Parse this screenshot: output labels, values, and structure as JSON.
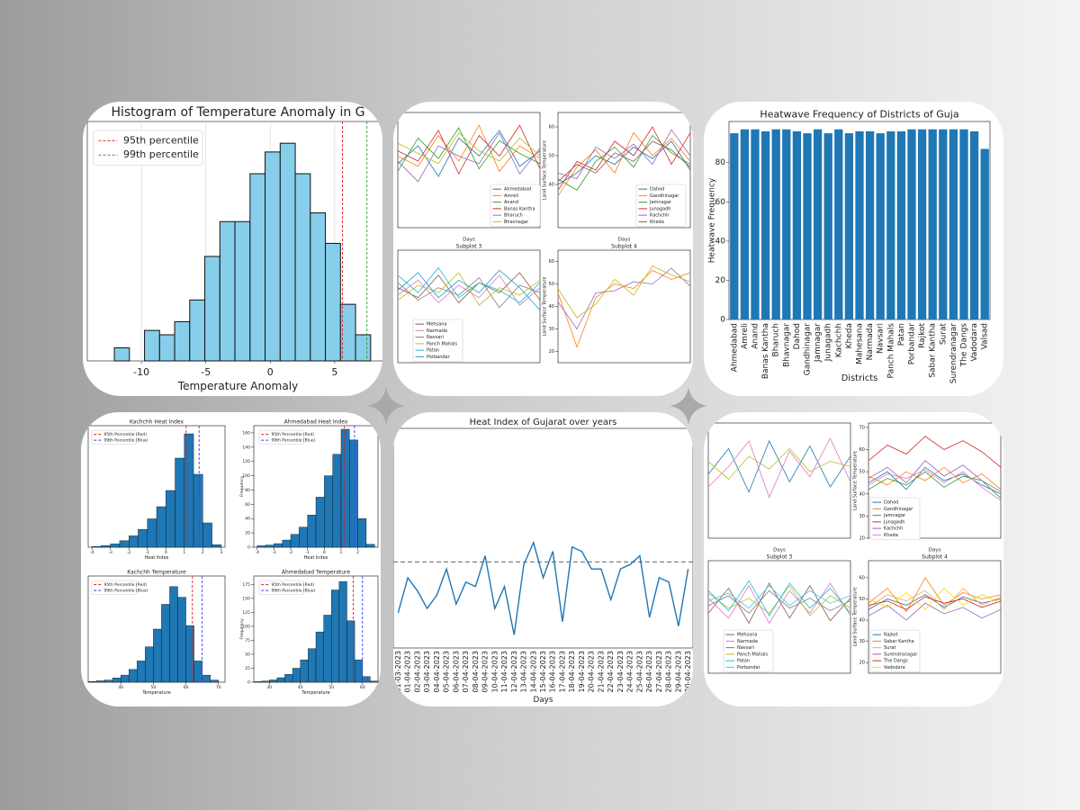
{
  "chart_data": [
    {
      "type": "histogram",
      "title": "Histogram of Temperature Anomaly in G",
      "xlabel": "Temperature Anomaly",
      "color": "#87ceeb",
      "bins": [
        -12.1,
        -10.93,
        -9.76,
        -8.59,
        -7.42,
        -6.25,
        -5.08,
        -3.91,
        -2.74,
        -1.57,
        -0.4,
        0.77,
        1.94,
        3.11,
        4.28,
        5.45,
        6.62,
        7.79
      ],
      "counts": [
        3,
        0,
        7,
        6,
        9,
        14,
        24,
        32,
        32,
        43,
        48,
        50,
        43,
        34,
        27,
        13,
        6
      ],
      "xlim": [
        -14.2,
        9.2
      ],
      "ylim": [
        0,
        55
      ],
      "xticks": [
        -10,
        -5,
        0,
        5
      ],
      "grid": true,
      "lines": [
        {
          "value": 5.6,
          "color": "#e41a1c",
          "label": "95th percentile"
        },
        {
          "value": 7.5,
          "color": "#2ca02c",
          "label": "99th percentile"
        }
      ]
    },
    {
      "type": "line",
      "xlabel": "Days",
      "ylim": [
        20,
        65
      ],
      "series": [
        {
          "name": "Ahmedabad",
          "color": "#1f77b4",
          "values": [
            45,
            52,
            40,
            55,
            48,
            58,
            44,
            50
          ]
        },
        {
          "name": "Amreli",
          "color": "#ff7f0e",
          "values": [
            48,
            44,
            56,
            46,
            60,
            42,
            52,
            47
          ]
        },
        {
          "name": "Anand",
          "color": "#2ca02c",
          "values": [
            42,
            55,
            47,
            59,
            43,
            54,
            49,
            45
          ]
        },
        {
          "name": "Banas Kantha",
          "color": "#d62728",
          "values": [
            50,
            46,
            58,
            41,
            56,
            48,
            60,
            43
          ]
        },
        {
          "name": "Bharuch",
          "color": "#9467bd",
          "values": [
            46,
            38,
            52,
            48,
            45,
            57,
            41,
            51
          ]
        },
        {
          "name": "Bhavnagar",
          "color": "#bcbd22",
          "values": [
            53,
            49,
            45,
            57,
            50,
            46,
            55,
            48
          ]
        }
      ]
    },
    {
      "type": "line",
      "xlabel": "Days",
      "ylabel": "Land Surface Temperature",
      "ylim": [
        25,
        65
      ],
      "yticks": [
        40,
        50,
        60
      ],
      "series": [
        {
          "name": "Dahod",
          "color": "#1f77b4",
          "values": [
            40,
            44,
            50,
            47,
            53,
            49,
            55,
            45
          ]
        },
        {
          "name": "Gandhinagar",
          "color": "#ff7f0e",
          "values": [
            36,
            46,
            52,
            44,
            58,
            50,
            56,
            48
          ]
        },
        {
          "name": "Jamnagar",
          "color": "#2ca02c",
          "values": [
            42,
            38,
            48,
            53,
            46,
            57,
            51,
            47
          ]
        },
        {
          "name": "Junagadh",
          "color": "#d62728",
          "values": [
            38,
            48,
            45,
            55,
            50,
            60,
            47,
            58
          ]
        },
        {
          "name": "Kachchh",
          "color": "#9467bd",
          "values": [
            44,
            42,
            53,
            49,
            54,
            47,
            59,
            50
          ]
        },
        {
          "name": "Kheda",
          "color": "#8c564b",
          "values": [
            41,
            47,
            44,
            51,
            48,
            55,
            52,
            46
          ]
        }
      ]
    },
    {
      "type": "line",
      "title": "Subplot 3",
      "ylim": [
        20,
        65
      ],
      "series": [
        {
          "name": "Mehsana",
          "color": "#8c564b",
          "values": [
            50,
            46,
            55,
            44,
            52,
            48,
            56,
            45
          ]
        },
        {
          "name": "Narmada",
          "color": "#e377c2",
          "values": [
            47,
            53,
            44,
            51,
            46,
            55,
            43,
            50
          ]
        },
        {
          "name": "Navsari",
          "color": "#7f7f7f",
          "values": [
            52,
            45,
            50,
            47,
            54,
            42,
            51,
            48
          ]
        },
        {
          "name": "Panch Mahals",
          "color": "#bcbd22",
          "values": [
            45,
            51,
            48,
            56,
            43,
            50,
            47,
            53
          ]
        },
        {
          "name": "Patan",
          "color": "#17becf",
          "values": [
            55,
            48,
            58,
            46,
            52,
            49,
            44,
            52
          ]
        },
        {
          "name": "Porbandar",
          "color": "#1f9fd6",
          "values": [
            49,
            56,
            46,
            53,
            48,
            57,
            50,
            41
          ]
        }
      ]
    },
    {
      "type": "line",
      "title": "Subplot 4",
      "ylabel": "Land Surface Temperature",
      "ylim": [
        15,
        65
      ],
      "yticks": [
        20,
        30,
        40,
        50,
        60
      ],
      "series": [
        {
          "color": "#ff7f0e",
          "values": [
            46,
            22,
            44,
            50,
            48,
            56,
            52,
            55
          ]
        },
        {
          "color": "#9467bd",
          "values": [
            42,
            30,
            46,
            47,
            51,
            50,
            57,
            49
          ]
        },
        {
          "color": "#bcbd22",
          "values": [
            48,
            35,
            41,
            52,
            45,
            58,
            54,
            51
          ]
        }
      ]
    },
    {
      "type": "bar",
      "title": "Heatwave Frequency of Districts of Guja",
      "xlabel": "Districts",
      "ylabel": "Heatwave Frequency",
      "color": "#1f77b4",
      "categories": [
        "Ahmedabad",
        "Amreli",
        "Anand",
        "Banas Kantha",
        "Bharuch",
        "Bhavnagar",
        "Dahod",
        "Gandhinagar",
        "Jamnagar",
        "Junagadh",
        "Kachchh",
        "Kheda",
        "Mahesana",
        "Narmada",
        "Navsari",
        "Panch Mahals",
        "Patan",
        "Porbandar",
        "Rajkot",
        "Sabar Kantha",
        "Surat",
        "Surendranagar",
        "The Dangs",
        "Vadodara",
        "Valsad"
      ],
      "values": [
        95,
        97,
        97,
        96,
        97,
        97,
        96,
        95,
        97,
        95,
        97,
        95,
        96,
        96,
        95,
        96,
        96,
        97,
        97,
        97,
        97,
        97,
        97,
        96,
        87
      ],
      "ylim": [
        0,
        101
      ],
      "yticks": [
        0,
        20,
        40,
        60,
        80
      ]
    },
    {
      "type": "histogram",
      "title": "Kachchh Heat Index",
      "xlabel": "Heat Index",
      "color": "#1f77b4",
      "bins": [
        -4,
        -3.5,
        -3,
        -2.5,
        -2,
        -1.5,
        -1,
        -0.5,
        0,
        0.5,
        1,
        1.5,
        2,
        2.5,
        3
      ],
      "counts": [
        1,
        2,
        4,
        8,
        14,
        22,
        35,
        50,
        70,
        110,
        140,
        90,
        30,
        3
      ],
      "xlim": [
        -4.2,
        3.2
      ],
      "ylim": [
        0,
        150
      ],
      "xticks": [
        -4,
        -3,
        -2,
        -1,
        0,
        1,
        2,
        3
      ],
      "lines": [
        {
          "value": 1.1,
          "color": "#e41a1c",
          "label": "95th Percentile (Red)"
        },
        {
          "value": 1.8,
          "color": "#3b3bff",
          "label": "99th Percentile (Blue)"
        }
      ]
    },
    {
      "type": "histogram",
      "title": "Ahmedabad Heat Index",
      "xlabel": "Heat Index",
      "ylabel": "Frequency",
      "color": "#1f77b4",
      "bins": [
        -4,
        -3.5,
        -3,
        -2.5,
        -2,
        -1.5,
        -1,
        -0.5,
        0,
        0.5,
        1,
        1.5,
        2,
        2.5,
        3
      ],
      "counts": [
        2,
        3,
        5,
        10,
        18,
        28,
        45,
        70,
        100,
        130,
        165,
        150,
        40,
        4
      ],
      "xlim": [
        -4.2,
        3.2
      ],
      "ylim": [
        0,
        170
      ],
      "xticks": [
        -4,
        -3,
        -2,
        -1,
        0,
        1,
        2
      ],
      "yticks": [
        0,
        20,
        40,
        60,
        80,
        100,
        120,
        140,
        160
      ],
      "lines": [
        {
          "value": 1.2,
          "color": "#e41a1c",
          "label": "95th Percentile (Red)"
        },
        {
          "value": 1.8,
          "color": "#3b3bff",
          "label": "99th Percentile (Blue)"
        }
      ]
    },
    {
      "type": "histogram",
      "title": "Kachchh Temperature",
      "xlabel": "Temperature",
      "color": "#1f77b4",
      "bins": [
        30,
        32.5,
        35,
        37.5,
        40,
        42.5,
        45,
        47.5,
        50,
        52.5,
        55,
        57.5,
        60,
        62.5,
        65,
        67.5,
        70
      ],
      "counts": [
        1,
        2,
        3,
        6,
        10,
        18,
        30,
        50,
        75,
        110,
        135,
        120,
        80,
        30,
        10,
        3
      ],
      "xlim": [
        30,
        72
      ],
      "ylim": [
        0,
        150
      ],
      "xticks": [
        40,
        50,
        60,
        70
      ],
      "lines": [
        {
          "value": 62,
          "color": "#e41a1c",
          "label": "95th Percentile (Red)"
        },
        {
          "value": 65,
          "color": "#3b3bff",
          "label": "99th Percentile (Blue)"
        }
      ]
    },
    {
      "type": "histogram",
      "title": "Ahmedabad Temperature",
      "xlabel": "Temperature",
      "ylabel": "Frequency",
      "color": "#1f77b4",
      "bins": [
        25,
        27.5,
        30,
        32.5,
        35,
        37.5,
        40,
        42.5,
        45,
        47.5,
        50,
        52.5,
        55,
        57.5,
        60,
        62.5,
        65
      ],
      "counts": [
        1,
        2,
        4,
        8,
        14,
        25,
        40,
        60,
        90,
        120,
        165,
        180,
        110,
        40,
        10,
        2
      ],
      "xlim": [
        25,
        65
      ],
      "ylim": [
        0,
        190
      ],
      "xticks": [
        30,
        40,
        50,
        60
      ],
      "yticks": [
        0,
        25,
        50,
        75,
        100,
        125,
        150,
        175
      ],
      "lines": [
        {
          "value": 57,
          "color": "#e41a1c",
          "label": "95th Percentile (Red)"
        },
        {
          "value": 60,
          "color": "#3b3bff",
          "label": "99th Percentile (Blue)"
        }
      ]
    },
    {
      "type": "line",
      "title": "Heat Index of Gujarat over years",
      "xlabel": "Days",
      "ylim": [
        0,
        25
      ],
      "hline": {
        "value": 9.8,
        "color": "#7f7f7f"
      },
      "categories": [
        "31-03-2023",
        "01-04-2023",
        "02-04-2023",
        "03-04-2023",
        "04-04-2023",
        "05-04-2023",
        "06-04-2023",
        "07-04-2023",
        "08-04-2023",
        "09-04-2023",
        "10-04-2023",
        "11-04-2023",
        "12-04-2023",
        "13-04-2023",
        "14-04-2023",
        "15-04-2023",
        "16-04-2023",
        "17-04-2023",
        "18-04-2023",
        "19-04-2023",
        "20-04-2023",
        "21-04-2023",
        "22-04-2023",
        "23-04-2023",
        "24-04-2023",
        "25-04-2023",
        "26-04-2023",
        "27-04-2023",
        "28-04-2023",
        "29-04-2023",
        "30-04-2023"
      ],
      "series": [
        {
          "color": "#1f77b4",
          "values": [
            4,
            8,
            6.5,
            4.5,
            6,
            9,
            5,
            7.5,
            7,
            10.5,
            4.5,
            7,
            1.5,
            9.5,
            12,
            8,
            11,
            3,
            11.5,
            11,
            9,
            9,
            5.5,
            9,
            9.5,
            10.5,
            3.5,
            8,
            7.5,
            2.5,
            9
          ]
        }
      ]
    },
    {
      "type": "line",
      "xlabel": "Days",
      "ylim": [
        20,
        65
      ],
      "series": [
        {
          "color": "#1f77b4",
          "values": [
            45,
            55,
            38,
            58,
            42,
            56,
            40,
            52
          ]
        },
        {
          "color": "#e377c2",
          "values": [
            40,
            48,
            58,
            36,
            54,
            44,
            59,
            42
          ]
        },
        {
          "color": "#bcbd22",
          "values": [
            50,
            43,
            52,
            47,
            55,
            46,
            50,
            48
          ]
        }
      ]
    },
    {
      "type": "line",
      "xlabel": "Days",
      "ylabel": "Land Surface Temperature",
      "ylim": [
        20,
        72
      ],
      "yticks": [
        20,
        30,
        40,
        50,
        60,
        70
      ],
      "series": [
        {
          "name": "Dahod",
          "color": "#1f77b4",
          "values": [
            45,
            50,
            42,
            52,
            46,
            49,
            44,
            40
          ]
        },
        {
          "name": "Gandhinagar",
          "color": "#ff7f0e",
          "values": [
            48,
            44,
            50,
            46,
            52,
            45,
            49,
            42
          ]
        },
        {
          "name": "Jamnagar",
          "color": "#2ca02c",
          "values": [
            42,
            47,
            44,
            50,
            43,
            48,
            46,
            38
          ]
        },
        {
          "name": "Junagadh",
          "color": "#d62728",
          "values": [
            55,
            62,
            58,
            66,
            60,
            64,
            59,
            52
          ]
        },
        {
          "name": "Kachchh",
          "color": "#9467bd",
          "values": [
            47,
            52,
            45,
            55,
            48,
            53,
            46,
            41
          ]
        },
        {
          "name": "Kheda",
          "color": "#e377c2",
          "values": [
            44,
            49,
            47,
            51,
            45,
            50,
            43,
            37
          ]
        }
      ]
    },
    {
      "type": "line",
      "title": "Subplot 3",
      "ylim": [
        20,
        65
      ],
      "series": [
        {
          "name": "Mehsana",
          "color": "#8c564b",
          "values": [
            44,
            54,
            40,
            56,
            42,
            55,
            41,
            50
          ]
        },
        {
          "name": "Narmada",
          "color": "#e377c2",
          "values": [
            50,
            42,
            55,
            40,
            53,
            44,
            56,
            43
          ]
        },
        {
          "name": "Navsari",
          "color": "#7f7f7f",
          "values": [
            47,
            51,
            44,
            53,
            46,
            50,
            45,
            49
          ]
        },
        {
          "name": "Panch Mahals",
          "color": "#bcbd22",
          "values": [
            52,
            46,
            50,
            44,
            55,
            43,
            51,
            46
          ]
        },
        {
          "name": "Patan",
          "color": "#17becf",
          "values": [
            53,
            45,
            57,
            43,
            56,
            46,
            54,
            44
          ]
        },
        {
          "name": "Porbandar",
          "color": "#4fc3e8",
          "values": [
            49,
            52,
            46,
            55,
            47,
            53,
            48,
            51
          ]
        }
      ]
    },
    {
      "type": "line",
      "title": "Subplot 4",
      "ylabel": "Land Surface Temperature",
      "ylim": [
        15,
        68
      ],
      "yticks": [
        20,
        30,
        40,
        50,
        60
      ],
      "series": [
        {
          "name": "Rajkot",
          "color": "#1f77b4",
          "values": [
            45,
            50,
            47,
            52,
            46,
            51,
            48,
            50
          ]
        },
        {
          "name": "Sabar Kantha",
          "color": "#ff7f0e",
          "values": [
            48,
            55,
            44,
            60,
            47,
            53,
            50,
            52
          ]
        },
        {
          "name": "Surat",
          "color": "#f2a65a",
          "values": [
            46,
            52,
            49,
            54,
            45,
            55,
            47,
            51
          ]
        },
        {
          "name": "Surendranagar",
          "color": "#9467bd",
          "values": [
            42,
            47,
            40,
            48,
            43,
            46,
            41,
            45
          ]
        },
        {
          "name": "The Dangs",
          "color": "#d62728",
          "values": [
            47,
            49,
            45,
            51,
            48,
            50,
            46,
            49
          ]
        },
        {
          "name": "Vadodara",
          "color": "#ffd700",
          "values": [
            50,
            46,
            53,
            45,
            55,
            47,
            52,
            48
          ]
        }
      ]
    }
  ]
}
